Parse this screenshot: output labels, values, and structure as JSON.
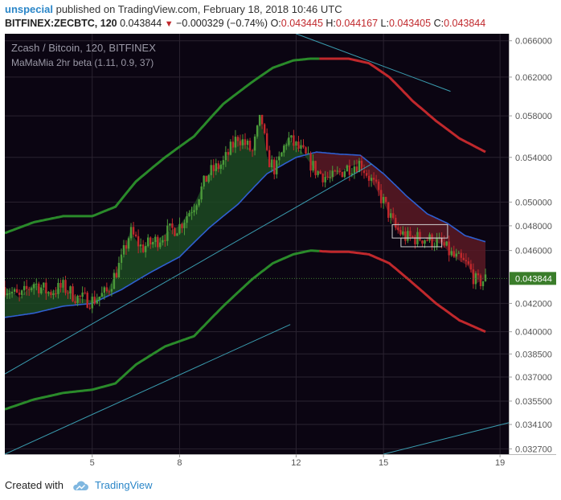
{
  "header": {
    "user": "unspecial",
    "published_text": "published on TradingView.com, February 18, 2018 10:46 UTC",
    "symbol": "BITFINEX:ZECBTC, 120",
    "last": "0.043844",
    "change": "−0.000329 (−0.74%)",
    "o_label": "O:",
    "o_value": "0.043445",
    "h_label": "H:",
    "h_value": "0.044167",
    "l_label": "L:",
    "l_value": "0.043405",
    "c_label": "C:",
    "c_value": "0.043844"
  },
  "legend": {
    "title": "Zcash / Bitcoin, 120, BITFINEX",
    "indicator": "MaMaMia 2hr beta (1.11, 0.9, 37)"
  },
  "footer": {
    "created_with": "Created with",
    "brand": "TradingView"
  },
  "colors": {
    "background": "#0b0512",
    "grid": "#2a2330",
    "up": "#4c9a3a",
    "down": "#c0282c",
    "outer_band_up": "#2a8a2a",
    "outer_band_down": "#c0282c",
    "ma_line": "#2f5fd0",
    "trend_line": "#3a9db0",
    "price_tag": "#3a7d2a"
  },
  "chart_data": {
    "type": "candlestick",
    "y_scale": "log",
    "ylim": [
      0.0324,
      0.0668
    ],
    "y_ticks": [
      "0.066000",
      "0.062000",
      "0.058000",
      "0.054000",
      "0.050000",
      "0.048000",
      "0.046000",
      "0.042000",
      "0.040000",
      "0.038500",
      "0.037000",
      "0.035500",
      "0.034100",
      "0.032700"
    ],
    "last_price": "0.043844",
    "x_ticks": [
      "5",
      "8",
      "12",
      "15",
      "19"
    ],
    "x_tick_days": [
      5,
      8,
      12,
      15,
      19
    ],
    "x_range_days": [
      2,
      19.3
    ],
    "close_anchors": [
      [
        2.0,
        0.0432
      ],
      [
        2.5,
        0.0424
      ],
      [
        3.0,
        0.0435
      ],
      [
        3.5,
        0.0428
      ],
      [
        4.0,
        0.0432
      ],
      [
        4.5,
        0.0424
      ],
      [
        5.0,
        0.0422
      ],
      [
        5.5,
        0.0428
      ],
      [
        6.0,
        0.0452
      ],
      [
        6.3,
        0.0475
      ],
      [
        6.7,
        0.0462
      ],
      [
        7.2,
        0.0468
      ],
      [
        7.6,
        0.0475
      ],
      [
        8.0,
        0.048
      ],
      [
        8.5,
        0.0498
      ],
      [
        9.0,
        0.0525
      ],
      [
        9.5,
        0.0535
      ],
      [
        10.0,
        0.056
      ],
      [
        10.5,
        0.0545
      ],
      [
        10.8,
        0.058
      ],
      [
        11.0,
        0.054
      ],
      [
        11.3,
        0.0528
      ],
      [
        11.7,
        0.0558
      ],
      [
        12.2,
        0.0545
      ],
      [
        12.7,
        0.0527
      ],
      [
        13.2,
        0.052
      ],
      [
        13.7,
        0.053
      ],
      [
        14.2,
        0.0535
      ],
      [
        14.6,
        0.0518
      ],
      [
        15.0,
        0.05
      ],
      [
        15.4,
        0.0478
      ],
      [
        15.8,
        0.047
      ],
      [
        16.4,
        0.047
      ],
      [
        17.0,
        0.0465
      ],
      [
        17.4,
        0.0455
      ],
      [
        17.9,
        0.0448
      ],
      [
        18.2,
        0.0435
      ],
      [
        18.5,
        0.0438
      ]
    ],
    "upper_band_anchors": [
      [
        2.0,
        0.0474
      ],
      [
        3.0,
        0.0483
      ],
      [
        4.0,
        0.0488
      ],
      [
        5.0,
        0.0488
      ],
      [
        5.8,
        0.0496
      ],
      [
        6.5,
        0.0518
      ],
      [
        7.5,
        0.054
      ],
      [
        8.5,
        0.056
      ],
      [
        9.5,
        0.0592
      ],
      [
        10.5,
        0.0615
      ],
      [
        11.2,
        0.063
      ],
      [
        11.9,
        0.0638
      ],
      [
        12.5,
        0.064
      ],
      [
        13.2,
        0.064
      ],
      [
        13.8,
        0.064
      ],
      [
        14.5,
        0.0635
      ],
      [
        15.2,
        0.062
      ],
      [
        16.0,
        0.0595
      ],
      [
        16.8,
        0.0575
      ],
      [
        17.6,
        0.0558
      ],
      [
        18.5,
        0.0545
      ]
    ],
    "lower_band_anchors": [
      [
        2.0,
        0.035
      ],
      [
        3.0,
        0.0356
      ],
      [
        4.0,
        0.036
      ],
      [
        5.0,
        0.0362
      ],
      [
        5.8,
        0.0366
      ],
      [
        6.5,
        0.0378
      ],
      [
        7.5,
        0.039
      ],
      [
        8.5,
        0.0397
      ],
      [
        9.5,
        0.0418
      ],
      [
        10.5,
        0.0438
      ],
      [
        11.2,
        0.045
      ],
      [
        11.9,
        0.0457
      ],
      [
        12.5,
        0.046
      ],
      [
        13.2,
        0.0459
      ],
      [
        13.8,
        0.0459
      ],
      [
        14.5,
        0.0457
      ],
      [
        15.2,
        0.045
      ],
      [
        16.0,
        0.0435
      ],
      [
        16.8,
        0.042
      ],
      [
        17.6,
        0.0408
      ],
      [
        18.5,
        0.04
      ]
    ],
    "band_turn_day": 12.8,
    "ma_anchors": [
      [
        2.0,
        0.041
      ],
      [
        3.0,
        0.0413
      ],
      [
        4.0,
        0.0418
      ],
      [
        5.0,
        0.042
      ],
      [
        6.0,
        0.043
      ],
      [
        7.0,
        0.0443
      ],
      [
        8.0,
        0.0455
      ],
      [
        9.0,
        0.0478
      ],
      [
        10.0,
        0.0498
      ],
      [
        11.0,
        0.0525
      ],
      [
        12.0,
        0.054
      ],
      [
        12.7,
        0.0545
      ],
      [
        13.5,
        0.0543
      ],
      [
        14.2,
        0.0542
      ],
      [
        15.0,
        0.0525
      ],
      [
        15.8,
        0.0505
      ],
      [
        16.5,
        0.049
      ],
      [
        17.2,
        0.0482
      ],
      [
        17.8,
        0.0472
      ],
      [
        18.5,
        0.0467
      ]
    ],
    "fill_turn_day": 12.6,
    "boxes": [
      {
        "x": [
          15.3,
          17.2
        ],
        "y": [
          0.047,
          0.0481
        ]
      },
      {
        "x": [
          15.6,
          17.0
        ],
        "y": [
          0.0463,
          0.047
        ]
      }
    ],
    "trend_lines": [
      {
        "from": [
          2.0,
          0.0372
        ],
        "to": [
          14.6,
          0.0534
        ]
      },
      {
        "from": [
          2.0,
          0.0324
        ],
        "to": [
          11.8,
          0.0405
        ]
      },
      {
        "from": [
          15.0,
          0.0324
        ],
        "to": [
          19.3,
          0.0342
        ]
      },
      {
        "from": [
          12.0,
          0.0668
        ],
        "to": [
          17.3,
          0.0605
        ]
      }
    ]
  }
}
